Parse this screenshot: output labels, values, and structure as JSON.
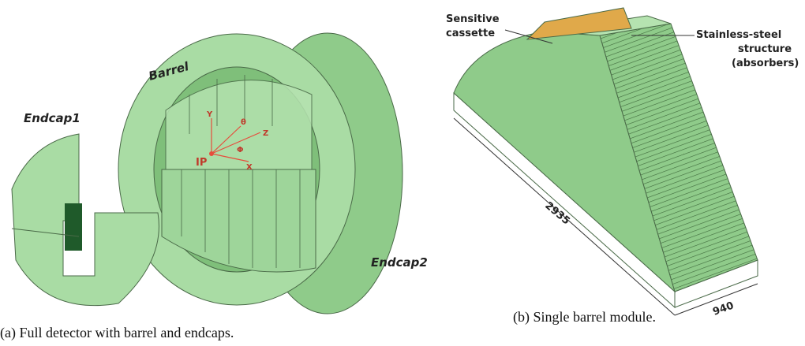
{
  "figures": [
    {
      "labels": {
        "barrel": "Barrel",
        "endcap1": "Endcap1",
        "endcap2": "Endcap2",
        "ip": "IP",
        "axes": [
          "Y",
          "θ",
          "Z",
          "Φ",
          "X"
        ]
      },
      "caption": "(a)  Full detector with barrel and endcaps."
    },
    {
      "labels": {
        "sensitive": [
          "Sensitive",
          "cassette"
        ],
        "structure": [
          "Stainless-steel",
          "structure",
          "(absorbers)"
        ],
        "dimensions": [
          2935,
          940
        ]
      },
      "caption": "(b)  Single barrel module."
    }
  ]
}
